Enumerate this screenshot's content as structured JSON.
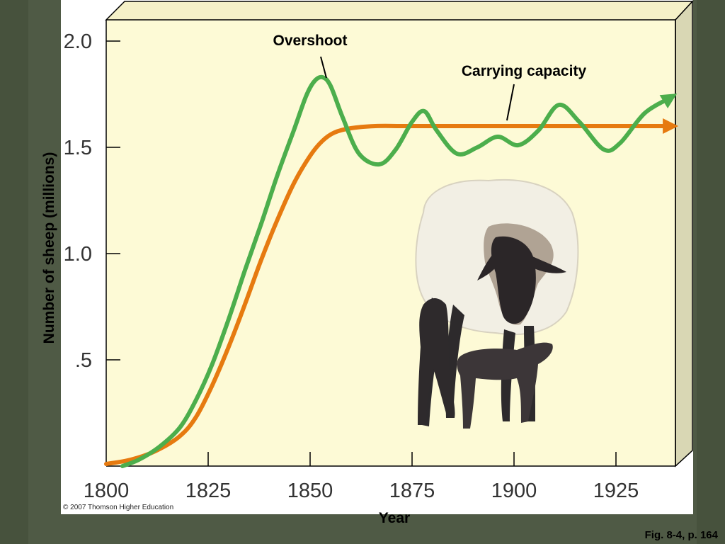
{
  "colors": {
    "plot_background": "#fdfad6",
    "carrying_capacity_line": "#e67a10",
    "population_line": "#4cae4c",
    "slide_background": "#4f5a45"
  },
  "chart_data": {
    "type": "line",
    "ylabel": "Number of sheep (millions)",
    "xlabel": "Year",
    "xlim": [
      1800,
      1940
    ],
    "ylim": [
      0,
      2.0
    ],
    "x_ticks": [
      1800,
      1825,
      1850,
      1875,
      1900,
      1925
    ],
    "x_tick_labels": [
      "1800",
      "1825",
      "1850",
      "1875",
      "1900",
      "1925"
    ],
    "y_ticks": [
      0.5,
      1.0,
      1.5,
      2.0
    ],
    "y_tick_labels": [
      ".5",
      "1.0",
      "1.5",
      "2.0"
    ],
    "grid": false,
    "series": [
      {
        "key": "carrying",
        "x": [
          1800,
          1806,
          1812,
          1818,
          1822,
          1826,
          1830,
          1834,
          1838,
          1842,
          1846,
          1850,
          1853,
          1856,
          1860,
          1866,
          1875,
          1900,
          1938
        ],
        "values": [
          0.01,
          0.03,
          0.07,
          0.14,
          0.23,
          0.38,
          0.56,
          0.76,
          0.97,
          1.16,
          1.33,
          1.46,
          1.53,
          1.57,
          1.59,
          1.6,
          1.6,
          1.6,
          1.6
        ]
      },
      {
        "key": "population",
        "x": [
          1804,
          1808,
          1813,
          1818,
          1822,
          1826,
          1830,
          1834,
          1838,
          1842,
          1846,
          1849,
          1851,
          1853,
          1855,
          1858,
          1862,
          1867,
          1871,
          1875,
          1878,
          1881,
          1886,
          1891,
          1896,
          1901,
          1906,
          1911,
          1916,
          1922,
          1926,
          1932,
          1938
        ],
        "values": [
          0.0,
          0.03,
          0.09,
          0.18,
          0.31,
          0.48,
          0.69,
          0.92,
          1.14,
          1.37,
          1.58,
          1.74,
          1.81,
          1.83,
          1.79,
          1.64,
          1.47,
          1.42,
          1.49,
          1.62,
          1.67,
          1.58,
          1.47,
          1.5,
          1.55,
          1.51,
          1.58,
          1.7,
          1.62,
          1.49,
          1.52,
          1.66,
          1.73
        ]
      }
    ],
    "annotations": [
      {
        "key": "overshoot",
        "text": "Overshoot"
      },
      {
        "key": "carrying",
        "text": "Carrying capacity"
      }
    ]
  },
  "copyright": "© 2007 Thomson Higher Education",
  "figure_ref": "Fig. 8-4, p. 164"
}
